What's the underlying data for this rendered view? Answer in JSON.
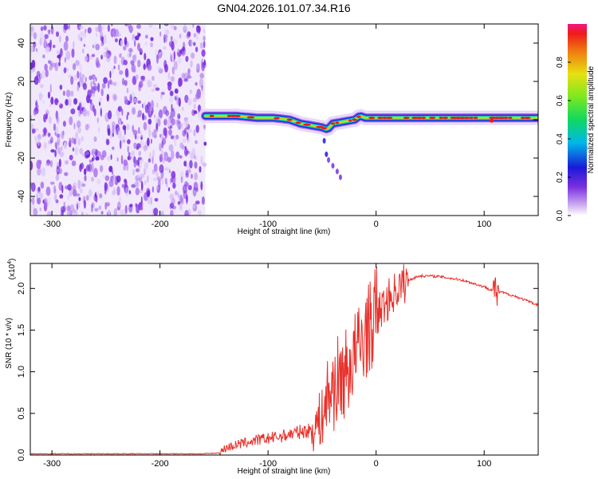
{
  "title": "GN04.2026.101.07.34.R16",
  "chart_data": [
    {
      "type": "heatmap",
      "name": "spectrogram",
      "xlabel": "Height of straight line (km)",
      "ylabel": "Frequency (Hz)",
      "xlim": [
        -320,
        150
      ],
      "ylim": [
        -50,
        50
      ],
      "xticks": [
        -300,
        -200,
        -100,
        0,
        100
      ],
      "yticks": [
        -40,
        -20,
        0,
        20,
        40
      ],
      "noise_region_x": [
        -320,
        -158
      ],
      "signal_ridge": {
        "x": [
          -158,
          -145,
          -130,
          -110,
          -95,
          -80,
          -70,
          -60,
          -50,
          -45,
          -40,
          -30,
          -20,
          -15,
          -10,
          0,
          20,
          50,
          80,
          100,
          120,
          150
        ],
        "y": [
          2,
          2,
          2,
          1,
          1,
          0,
          -2,
          -3,
          -4,
          -5,
          -2,
          -1,
          0,
          2,
          1,
          1,
          1,
          1,
          1,
          1,
          1,
          1
        ]
      },
      "tail_points": {
        "x": [
          -48,
          -46,
          -44,
          -40,
          -36,
          -33
        ],
        "y": [
          -11,
          -18,
          -21,
          -24,
          -27,
          -30
        ]
      },
      "colorbar": {
        "label": "Normalized spectral amplitude",
        "ticks": [
          "0.0",
          "0.2",
          "0.4",
          "0.6",
          "0.8"
        ],
        "tick_values": [
          0.0,
          0.2,
          0.4,
          0.6,
          0.8
        ],
        "range": [
          0,
          1
        ]
      }
    },
    {
      "type": "line",
      "name": "snr",
      "xlabel": "Height of straight line (km)",
      "ylabel": "SNR (10 * v/v)",
      "yscale_label": "(x10",
      "yscale_exp": "4",
      "yscale_close": ")",
      "xlim": [
        -320,
        150
      ],
      "ylim": [
        0,
        2.3
      ],
      "xticks": [
        -300,
        -200,
        -100,
        0,
        100
      ],
      "yticks": [
        "0.0",
        "0.5",
        "1.0",
        "1.5",
        "2.0"
      ],
      "ytick_values": [
        0,
        0.5,
        1.0,
        1.5,
        2.0
      ],
      "series": [
        {
          "name": "SNR",
          "color": "#e8302a",
          "x": [
            -320,
            -300,
            -250,
            -200,
            -160,
            -145,
            -140,
            -130,
            -120,
            -110,
            -100,
            -90,
            -80,
            -70,
            -60,
            -50,
            -45,
            -40,
            -35,
            -30,
            -25,
            -20,
            -15,
            -10,
            -5,
            0,
            5,
            10,
            20,
            30,
            40,
            50,
            60,
            70,
            80,
            90,
            100,
            105,
            110,
            112,
            115,
            130,
            150
          ],
          "y": [
            0.01,
            0.01,
            0.01,
            0.01,
            0.01,
            0.02,
            0.08,
            0.12,
            0.15,
            0.18,
            0.2,
            0.22,
            0.25,
            0.28,
            0.3,
            0.45,
            0.7,
            0.8,
            0.9,
            0.95,
            1.05,
            1.2,
            1.3,
            1.45,
            1.55,
            1.65,
            1.75,
            1.85,
            2.0,
            2.1,
            2.15,
            2.15,
            2.14,
            2.12,
            2.1,
            2.06,
            2.02,
            1.99,
            1.98,
            1.9,
            1.96,
            1.9,
            1.8
          ]
        }
      ]
    }
  ]
}
